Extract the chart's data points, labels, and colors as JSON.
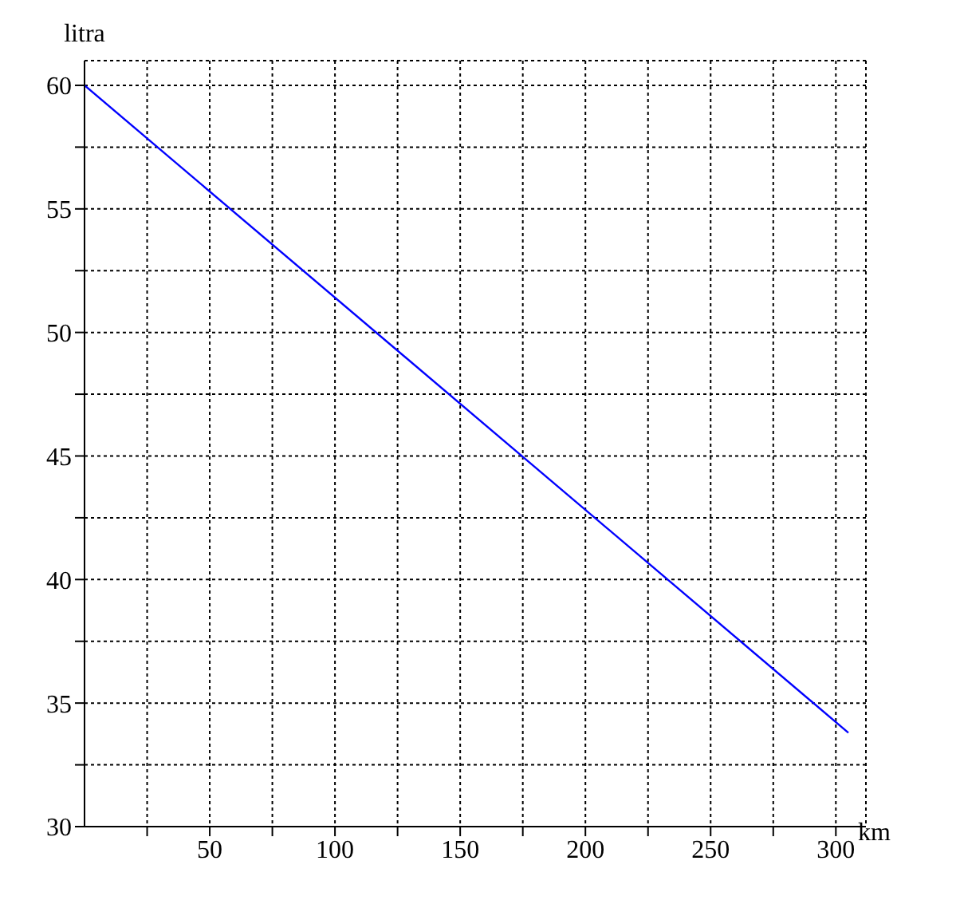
{
  "chart_data": {
    "type": "line",
    "xlabel": "km",
    "ylabel": "litra",
    "x": [
      0,
      305
    ],
    "series": [
      {
        "color": "#0000ff",
        "values": [
          60,
          33.8
        ]
      }
    ],
    "xlim": [
      0,
      312
    ],
    "ylim": [
      30,
      61
    ],
    "xticks": [
      {
        "value": 25,
        "label": null
      },
      50,
      {
        "value": 75,
        "label": null
      },
      100,
      {
        "value": 125,
        "label": null
      },
      150,
      {
        "value": 175,
        "label": null
      },
      200,
      {
        "value": 225,
        "label": null
      },
      250,
      {
        "value": 275,
        "label": null
      },
      300
    ],
    "yticks": [
      30,
      {
        "value": 32.5,
        "label": null
      },
      35,
      {
        "value": 37.5,
        "label": null
      },
      40,
      {
        "value": 42.5,
        "label": null
      },
      45,
      {
        "value": 47.5,
        "label": null
      },
      50,
      {
        "value": 52.5,
        "label": null
      },
      55,
      {
        "value": 57.5,
        "label": null
      },
      60
    ],
    "grid": true,
    "marker": "none",
    "line_style": "solid",
    "legend": false
  }
}
